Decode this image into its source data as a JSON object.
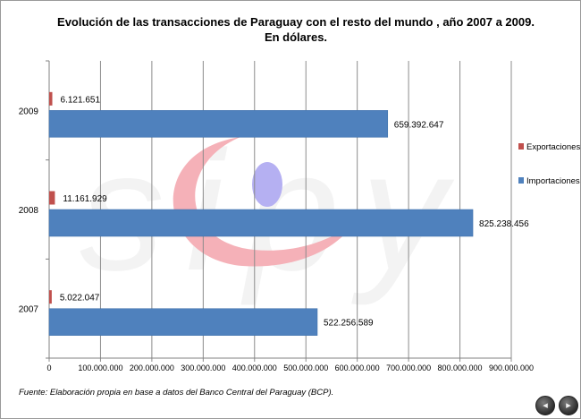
{
  "colors": {
    "exportaciones": "#c0504d",
    "importaciones": "#4f81bd",
    "gridline": "#8c8c8c",
    "watermark_pink": "#f4a4ac",
    "watermark_blue": "#a9a3f0"
  },
  "watermark": {
    "text": "sipy"
  },
  "nav": {
    "prev_icon": "◂",
    "next_icon": "▸"
  },
  "chart_data": {
    "type": "bar",
    "orientation": "horizontal",
    "title": "Evolución de las transacciones de Paraguay con el resto del mundo , año 2007 a 2009.",
    "subtitle": "En dólares.",
    "categories": [
      "2009",
      "2008",
      "2007"
    ],
    "series": [
      {
        "name": "Exportaciones",
        "values": [
          6121651,
          11161929,
          5022047
        ],
        "labels": [
          "6.121.651",
          "11.161.929",
          "5.022.047"
        ]
      },
      {
        "name": "Importaciones",
        "values": [
          659392647,
          825238456,
          522256589
        ],
        "labels": [
          "659.392.647",
          "825.238.456",
          "522.256.589"
        ]
      }
    ],
    "xlim": [
      0,
      900000000
    ],
    "xticks": [
      0,
      100000000,
      200000000,
      300000000,
      400000000,
      500000000,
      600000000,
      700000000,
      800000000,
      900000000
    ],
    "xtick_labels": [
      "0",
      "100.000.000",
      "200.000.000",
      "300.000.000",
      "400.000.000",
      "500.000.000",
      "600.000.000",
      "700.000.000",
      "800.000.000",
      "900.000.000"
    ],
    "xlabel": "",
    "ylabel": "",
    "grid": "vertical",
    "legend_position": "right",
    "source": "Fuente: Elaboración propia en base a datos del Banco Central del Paraguay (BCP)."
  }
}
